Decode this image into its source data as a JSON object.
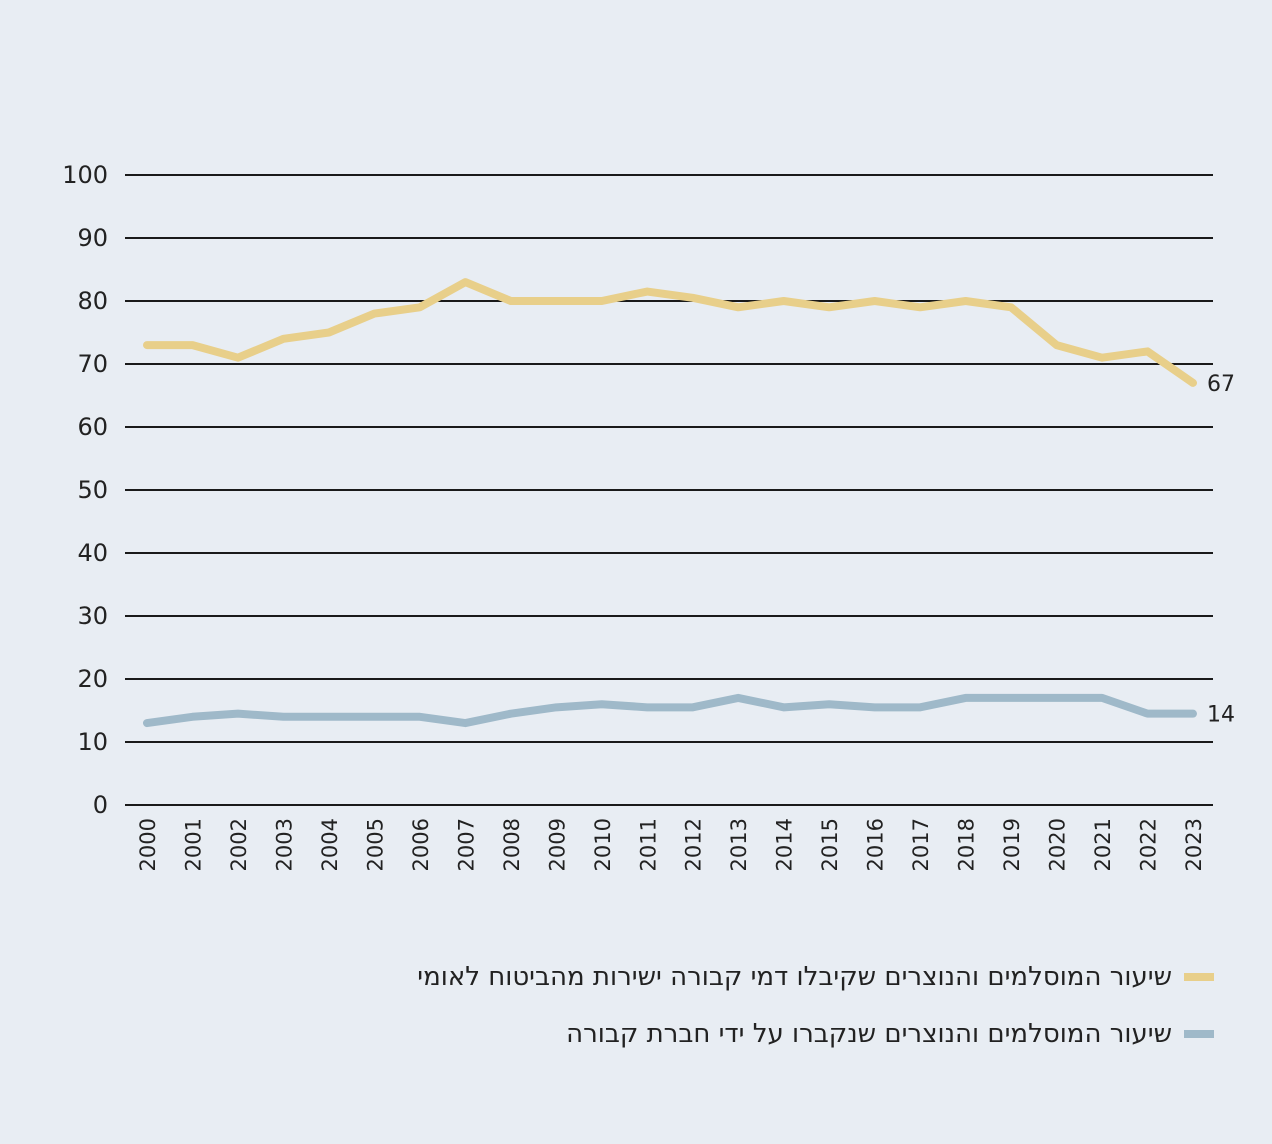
{
  "chart_data": {
    "type": "line",
    "title": "",
    "xlabel": "",
    "ylabel": "",
    "ylim": [
      0,
      100
    ],
    "yticks": [
      0,
      10,
      20,
      30,
      40,
      50,
      60,
      70,
      80,
      90,
      100
    ],
    "grid": true,
    "legend_placement": "bottom-right",
    "x": [
      2000,
      2001,
      2002,
      2003,
      2004,
      2005,
      2006,
      2007,
      2008,
      2009,
      2010,
      2011,
      2012,
      2013,
      2014,
      2015,
      2016,
      2017,
      2018,
      2019,
      2020,
      2021,
      2022,
      2023
    ],
    "series": [
      {
        "name": "שיעור המוסלמים והנוצרים שקיבלו דמי קבורה ישירות מהביטוח לאומי",
        "color": "#e8cf8a",
        "values": [
          73,
          73,
          71,
          74,
          75,
          78,
          79,
          83,
          80,
          80,
          80,
          81.5,
          80.5,
          79,
          80,
          79,
          80,
          79,
          80,
          79,
          73,
          71,
          72,
          67
        ],
        "end_label": "67"
      },
      {
        "name": "שיעור המוסלמים והנוצרים שנקברו על ידי חברת קבורה",
        "color": "#9fb9c9",
        "values": [
          13,
          14,
          14.5,
          14,
          14,
          14,
          14,
          13,
          14.5,
          15.5,
          16,
          15.5,
          15.5,
          17,
          15.5,
          16,
          15.5,
          15.5,
          17,
          17,
          17,
          17,
          14.5,
          14.5
        ],
        "end_label": "14"
      }
    ]
  }
}
